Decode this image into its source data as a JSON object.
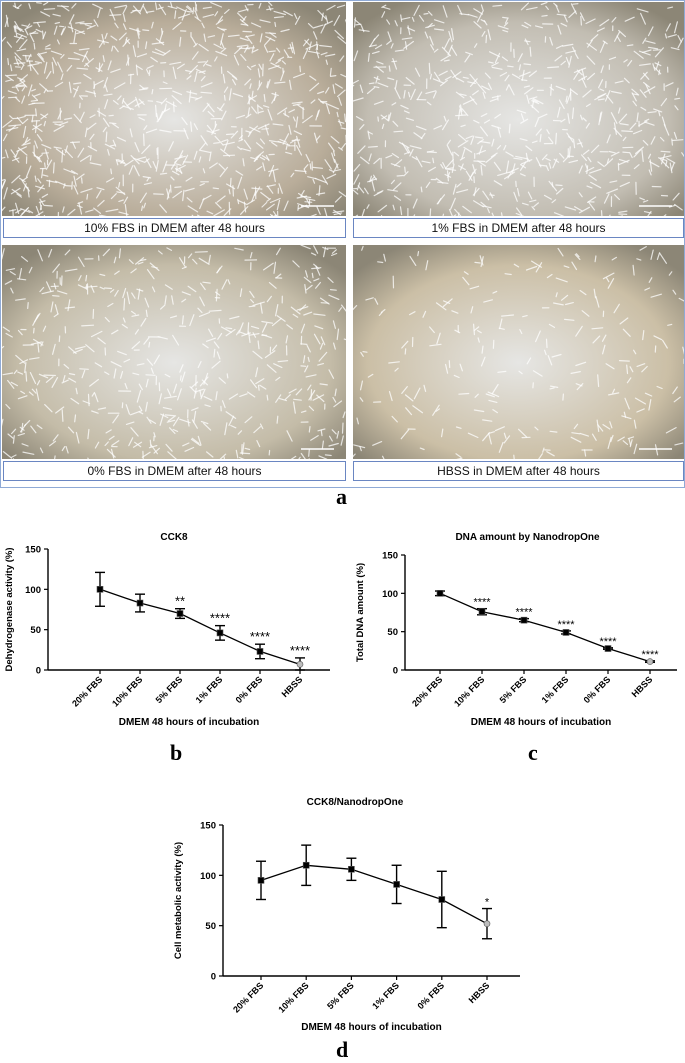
{
  "figure": {
    "panels": [
      {
        "letter": "a"
      },
      {
        "letter": "b"
      },
      {
        "letter": "c"
      },
      {
        "letter": "d"
      }
    ]
  },
  "micrographs": [
    {
      "caption": "10% FBS in DMEM after 48 hours",
      "density": 0.95,
      "tone": "#b9ad9a"
    },
    {
      "caption": "1% FBS in DMEM after 48 hours",
      "density": 0.7,
      "tone": "#c2bdb2"
    },
    {
      "caption": "0% FBS in DMEM after 48 hours",
      "density": 0.55,
      "tone": "#c4bca8"
    },
    {
      "caption": "HBSS in DMEM after 48 hours",
      "density": 0.25,
      "tone": "#cbbfa6"
    }
  ],
  "chart_data": [
    {
      "type": "line",
      "title": "CCK8",
      "xlabel": "DMEM 48 hours of incubation",
      "ylabel": "Dehydrogenase activity (%)",
      "categories": [
        "20% FBS",
        "10% FBS",
        "5% FBS",
        "1% FBS",
        "0% FBS",
        "HBSS"
      ],
      "values": [
        100,
        83,
        70,
        46,
        23,
        7
      ],
      "errors": [
        21,
        11,
        6,
        9,
        9,
        8
      ],
      "significance": [
        "",
        "",
        "**",
        "****",
        "****",
        "****"
      ],
      "yticks": [
        "0",
        "50",
        "100",
        "150"
      ],
      "ylim": [
        0,
        150
      ]
    },
    {
      "type": "line",
      "title": "DNA amount by NanodropOne",
      "xlabel": "DMEM 48 hours of incubation",
      "ylabel": "Total DNA amount (%)",
      "categories": [
        "20% FBS",
        "10% FBS",
        "5% FBS",
        "1% FBS",
        "0% FBS",
        "HBSS"
      ],
      "values": [
        100,
        76,
        65,
        49,
        28,
        11
      ],
      "errors": [
        3,
        4,
        2,
        2,
        1,
        1
      ],
      "significance": [
        "",
        "****",
        "****",
        "****",
        "****",
        "****"
      ],
      "yticks": [
        "0",
        "50",
        "100",
        "150"
      ],
      "ylim": [
        0,
        150
      ]
    },
    {
      "type": "line",
      "title": "CCK8/NanodropOne",
      "xlabel": "DMEM 48 hours of incubation",
      "ylabel": "Cell metabolic activity (%)",
      "categories": [
        "20% FBS",
        "10% FBS",
        "5% FBS",
        "1% FBS",
        "0% FBS",
        "HBSS"
      ],
      "values": [
        95,
        110,
        106,
        91,
        76,
        52
      ],
      "errors": [
        19,
        20,
        11,
        19,
        28,
        15
      ],
      "significance": [
        "",
        "",
        "",
        "",
        "",
        "*"
      ],
      "yticks": [
        "0",
        "50",
        "100",
        "150"
      ],
      "ylim": [
        0,
        150
      ]
    }
  ]
}
